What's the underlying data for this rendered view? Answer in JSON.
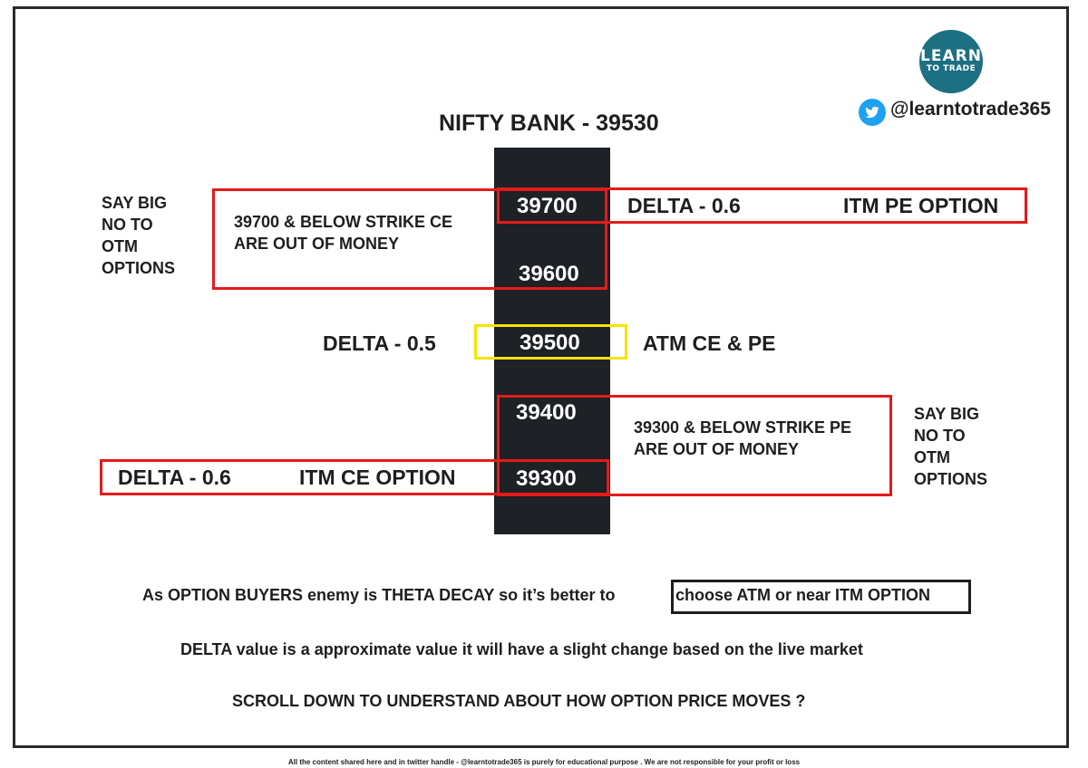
{
  "logo": {
    "line1": "LEARN",
    "line2": "TO TRADE"
  },
  "twitter_handle": "@learntotrade365",
  "title": "NIFTY BANK - 39530",
  "strikes": {
    "s39700": "39700",
    "s39600": "39600",
    "s39500": "39500",
    "s39400": "39400",
    "s39300": "39300"
  },
  "top_block": {
    "side_lines": [
      "SAY BIG",
      "NO TO",
      "OTM",
      "OPTIONS"
    ],
    "note_lines": [
      "39700 & BELOW STRIKE CE",
      "ARE OUT OF MONEY"
    ],
    "delta": "DELTA - 0.6",
    "option": "ITM PE OPTION"
  },
  "atm_block": {
    "delta": "DELTA - 0.5",
    "label": "ATM CE & PE"
  },
  "bottom_block": {
    "side_lines": [
      "SAY BIG",
      "NO TO",
      "OTM",
      "OPTIONS"
    ],
    "note_lines": [
      "39300 & BELOW STRIKE PE",
      "ARE OUT OF MONEY"
    ],
    "delta": "DELTA - 0.6",
    "option": "ITM CE OPTION"
  },
  "footer_lines": {
    "theta_prefix": "As OPTION BUYERS enemy is THETA DECAY so it’s better to ",
    "theta_boxed": "choose ATM or near ITM OPTION",
    "delta_note": "DELTA value is a approximate value it will have a slight change based on the live market",
    "scroll": "SCROLL DOWN TO UNDERSTAND ABOUT HOW OPTION PRICE MOVES ?"
  },
  "disclaimer": "All the content shared here and in twitter handle - @learntotrade365 is purely for educational purpose . We are not responsible for your profit or loss",
  "colors": {
    "red": "#e41b1b",
    "yellow": "#f4e400",
    "column": "#1e2125",
    "twitter": "#1da1f2",
    "logo": "#1d6f82"
  }
}
